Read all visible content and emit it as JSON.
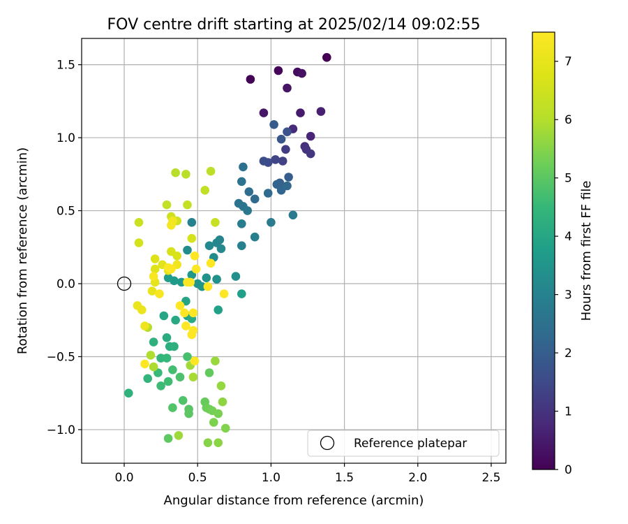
{
  "chart_data": {
    "type": "scatter",
    "title": "FOV centre drift starting at 2025/02/14 09:02:55",
    "xlabel": "Angular distance from reference (arcmin)",
    "ylabel": "Rotation from reference (arcmin)",
    "xlim": [
      -0.29,
      2.6
    ],
    "ylim": [
      -1.23,
      1.68
    ],
    "xticks": [
      0.0,
      0.5,
      1.0,
      1.5,
      2.0,
      2.5
    ],
    "xtick_labels": [
      "0.0",
      "0.5",
      "1.0",
      "1.5",
      "2.0",
      "2.5"
    ],
    "yticks": [
      -1.0,
      -0.5,
      0.0,
      0.5,
      1.0,
      1.5
    ],
    "ytick_labels": [
      "−1.0",
      "−0.5",
      "0.0",
      "0.5",
      "1.0",
      "1.5"
    ],
    "grid": true,
    "legend": {
      "position": "lower-right",
      "entries": [
        "Reference platepar"
      ]
    },
    "reference_point": {
      "x": 0.0,
      "y": 0.0,
      "label": "Reference platepar"
    },
    "colorbar": {
      "label": "Hours from first FF file",
      "colormap": "viridis",
      "range": [
        0,
        7.5
      ],
      "ticks": [
        0,
        1,
        2,
        3,
        4,
        5,
        6,
        7
      ],
      "tick_labels": [
        "0",
        "1",
        "2",
        "3",
        "4",
        "5",
        "6",
        "7"
      ]
    },
    "series": [
      {
        "points": [
          [
            1.38,
            1.55,
            0.0
          ],
          [
            0.86,
            1.4,
            0.05
          ],
          [
            1.05,
            1.46,
            0.1
          ],
          [
            1.18,
            1.45,
            0.2
          ],
          [
            1.21,
            1.44,
            0.3
          ],
          [
            1.11,
            1.34,
            0.35
          ],
          [
            0.95,
            1.17,
            0.4
          ],
          [
            1.2,
            1.17,
            0.5
          ],
          [
            1.34,
            1.18,
            0.6
          ],
          [
            1.27,
            1.01,
            0.7
          ],
          [
            1.15,
            1.06,
            0.8
          ],
          [
            1.23,
            0.94,
            0.9
          ],
          [
            1.24,
            0.92,
            1.0
          ],
          [
            1.27,
            0.89,
            1.1
          ],
          [
            1.1,
            0.92,
            1.2
          ],
          [
            1.08,
            0.84,
            1.3
          ],
          [
            1.03,
            0.85,
            1.4
          ],
          [
            0.98,
            0.83,
            1.5
          ],
          [
            0.95,
            0.84,
            1.6
          ],
          [
            1.11,
            1.04,
            1.7
          ],
          [
            1.07,
            0.99,
            1.8
          ],
          [
            1.02,
            1.09,
            1.9
          ],
          [
            1.12,
            0.73,
            2.0
          ],
          [
            1.06,
            0.69,
            2.1
          ],
          [
            1.04,
            0.68,
            2.15
          ],
          [
            1.07,
            0.64,
            2.2
          ],
          [
            1.11,
            0.67,
            2.25
          ],
          [
            0.98,
            0.62,
            2.3
          ],
          [
            0.89,
            0.58,
            2.35
          ],
          [
            0.85,
            0.63,
            2.4
          ],
          [
            0.81,
            0.8,
            2.5
          ],
          [
            0.8,
            0.7,
            2.55
          ],
          [
            0.78,
            0.55,
            2.6
          ],
          [
            0.81,
            0.53,
            2.65
          ],
          [
            0.84,
            0.5,
            2.7
          ],
          [
            1.15,
            0.47,
            2.75
          ],
          [
            1.0,
            0.42,
            2.8
          ],
          [
            0.8,
            0.41,
            2.85
          ],
          [
            0.89,
            0.32,
            2.9
          ],
          [
            0.8,
            0.26,
            2.95
          ],
          [
            0.46,
            0.42,
            3.0
          ],
          [
            0.65,
            0.3,
            3.05
          ],
          [
            0.63,
            0.28,
            3.1
          ],
          [
            0.66,
            0.24,
            3.15
          ],
          [
            0.58,
            0.26,
            3.2
          ],
          [
            0.61,
            0.18,
            3.25
          ],
          [
            0.43,
            0.23,
            3.3
          ],
          [
            0.76,
            0.05,
            3.35
          ],
          [
            0.63,
            0.03,
            3.4
          ],
          [
            0.56,
            0.04,
            3.45
          ],
          [
            0.5,
            0.0,
            3.5
          ],
          [
            0.53,
            -0.02,
            3.55
          ],
          [
            0.46,
            0.06,
            3.6
          ],
          [
            0.39,
            0.01,
            3.65
          ],
          [
            0.34,
            0.02,
            3.7
          ],
          [
            0.3,
            0.04,
            3.75
          ],
          [
            0.8,
            -0.07,
            3.8
          ],
          [
            0.64,
            -0.18,
            3.85
          ],
          [
            0.43,
            -0.22,
            3.9
          ],
          [
            0.42,
            -0.12,
            3.95
          ],
          [
            0.27,
            -0.22,
            4.0
          ],
          [
            0.35,
            -0.25,
            4.05
          ],
          [
            0.46,
            -0.24,
            4.1
          ],
          [
            0.29,
            -0.37,
            4.15
          ],
          [
            0.31,
            -0.43,
            4.2
          ],
          [
            0.34,
            -0.43,
            4.25
          ],
          [
            0.2,
            -0.4,
            4.3
          ],
          [
            0.03,
            -0.75,
            4.35
          ],
          [
            0.16,
            -0.65,
            4.4
          ],
          [
            0.25,
            -0.51,
            4.45
          ],
          [
            0.29,
            -0.51,
            4.5
          ],
          [
            0.23,
            -0.61,
            4.55
          ],
          [
            0.25,
            -0.7,
            4.6
          ],
          [
            0.3,
            -0.67,
            4.65
          ],
          [
            0.33,
            -0.59,
            4.7
          ],
          [
            0.43,
            -0.5,
            4.75
          ],
          [
            0.38,
            -0.64,
            4.8
          ],
          [
            0.4,
            -0.8,
            4.85
          ],
          [
            0.33,
            -0.85,
            4.9
          ],
          [
            0.44,
            -0.86,
            4.95
          ],
          [
            0.44,
            -0.89,
            5.0
          ],
          [
            0.3,
            -1.06,
            5.05
          ],
          [
            0.58,
            -0.61,
            5.1
          ],
          [
            0.55,
            -0.81,
            5.15
          ],
          [
            0.56,
            -0.85,
            5.2
          ],
          [
            0.58,
            -0.86,
            5.25
          ],
          [
            0.6,
            -0.87,
            5.3
          ],
          [
            0.64,
            -0.89,
            5.35
          ],
          [
            0.61,
            -0.95,
            5.4
          ],
          [
            0.69,
            -0.99,
            5.45
          ],
          [
            0.57,
            -1.09,
            5.5
          ],
          [
            0.64,
            -1.09,
            5.55
          ],
          [
            0.67,
            -0.81,
            5.6
          ],
          [
            0.66,
            -0.7,
            5.65
          ],
          [
            0.62,
            -0.53,
            5.7
          ],
          [
            0.37,
            -1.04,
            5.75
          ],
          [
            0.45,
            -0.56,
            5.8
          ],
          [
            0.47,
            -0.64,
            5.85
          ],
          [
            0.2,
            -0.57,
            5.9
          ],
          [
            0.18,
            -0.49,
            5.95
          ],
          [
            0.16,
            -0.3,
            6.0
          ],
          [
            0.35,
            0.76,
            6.05
          ],
          [
            0.42,
            0.75,
            6.1
          ],
          [
            0.59,
            0.77,
            6.15
          ],
          [
            0.55,
            0.64,
            6.2
          ],
          [
            0.29,
            0.54,
            6.25
          ],
          [
            0.43,
            0.54,
            6.3
          ],
          [
            0.62,
            0.42,
            6.35
          ],
          [
            0.1,
            0.42,
            6.4
          ],
          [
            0.32,
            0.46,
            6.45
          ],
          [
            0.36,
            0.43,
            6.5
          ],
          [
            0.1,
            0.28,
            6.55
          ],
          [
            0.46,
            0.31,
            6.6
          ],
          [
            0.32,
            0.22,
            6.65
          ],
          [
            0.36,
            0.19,
            6.7
          ],
          [
            0.21,
            0.17,
            6.75
          ],
          [
            0.21,
            0.1,
            6.8
          ],
          [
            0.26,
            0.13,
            6.85
          ],
          [
            0.3,
            0.09,
            6.9
          ],
          [
            0.21,
            0.01,
            6.95
          ],
          [
            0.19,
            -0.05,
            7.0
          ],
          [
            0.09,
            -0.15,
            7.05
          ],
          [
            0.12,
            -0.18,
            7.1
          ],
          [
            0.14,
            -0.29,
            7.15
          ],
          [
            0.36,
            0.13,
            7.2
          ],
          [
            0.33,
            0.43,
            7.25
          ],
          [
            0.32,
            0.4,
            7.3
          ],
          [
            0.2,
            0.05,
            7.35
          ],
          [
            0.24,
            -0.07,
            7.4
          ],
          [
            0.3,
            0.11,
            7.45
          ],
          [
            0.32,
            0.1,
            7.5
          ],
          [
            0.48,
            0.19,
            7.5
          ],
          [
            0.49,
            0.1,
            7.5
          ],
          [
            0.59,
            0.14,
            7.5
          ],
          [
            0.43,
            0.01,
            7.5
          ],
          [
            0.45,
            0.01,
            7.5
          ],
          [
            0.57,
            -0.02,
            7.5
          ],
          [
            0.68,
            -0.07,
            7.5
          ],
          [
            0.38,
            -0.15,
            7.5
          ],
          [
            0.41,
            -0.2,
            7.5
          ],
          [
            0.47,
            -0.2,
            7.5
          ],
          [
            0.42,
            -0.29,
            7.5
          ],
          [
            0.47,
            -0.32,
            7.5
          ],
          [
            0.46,
            -0.35,
            7.5
          ],
          [
            0.48,
            -0.53,
            7.5
          ],
          [
            0.14,
            -0.55,
            7.5
          ]
        ]
      }
    ]
  }
}
